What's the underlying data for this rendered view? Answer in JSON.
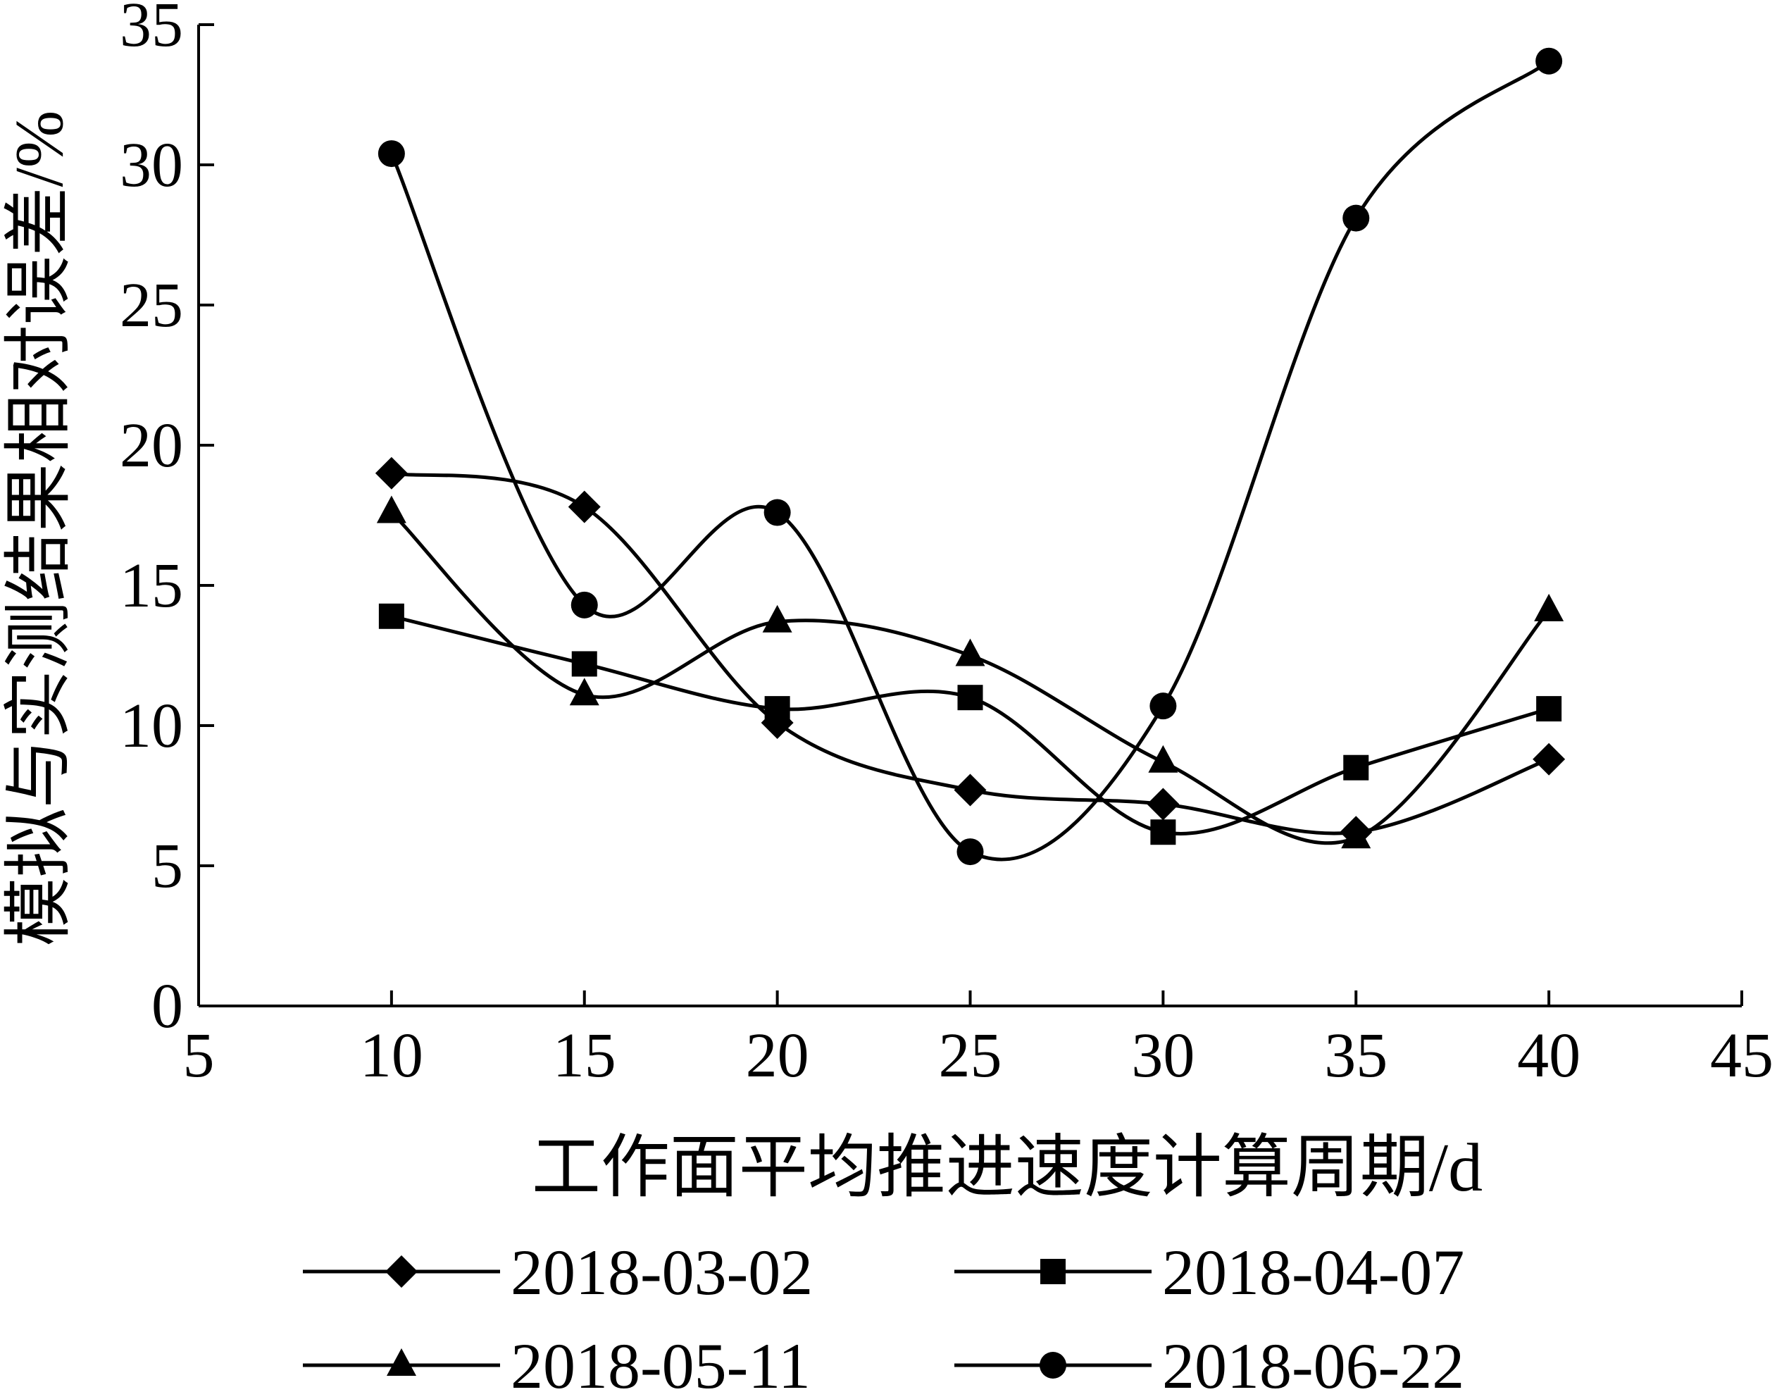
{
  "chart_data": {
    "type": "line",
    "title": "",
    "xlabel": "工作面平均推进速度计算周期/d",
    "ylabel": "模拟与实测结果相对误差/%",
    "xlim": [
      5,
      45
    ],
    "ylim": [
      0,
      35
    ],
    "xticks": [
      5,
      10,
      15,
      20,
      25,
      30,
      35,
      40,
      45
    ],
    "yticks": [
      0,
      5,
      10,
      15,
      20,
      25,
      30,
      35
    ],
    "x": [
      10,
      15,
      20,
      25,
      30,
      35,
      40
    ],
    "grid": false,
    "legend_position": "bottom",
    "series": [
      {
        "name": "2018-03-02",
        "marker": "diamond",
        "color": "#000000",
        "values": [
          19.0,
          17.8,
          10.1,
          7.7,
          7.2,
          6.2,
          8.8
        ]
      },
      {
        "name": "2018-04-07",
        "marker": "square",
        "color": "#000000",
        "values": [
          13.9,
          12.2,
          10.6,
          11.0,
          6.2,
          8.5,
          10.6
        ]
      },
      {
        "name": "2018-05-11",
        "marker": "triangle",
        "color": "#000000",
        "values": [
          17.6,
          11.1,
          13.7,
          12.5,
          8.7,
          6.0,
          14.1
        ]
      },
      {
        "name": "2018-06-22",
        "marker": "circle",
        "color": "#000000",
        "values": [
          30.4,
          14.3,
          17.6,
          5.5,
          10.7,
          28.1,
          33.7
        ]
      }
    ]
  }
}
